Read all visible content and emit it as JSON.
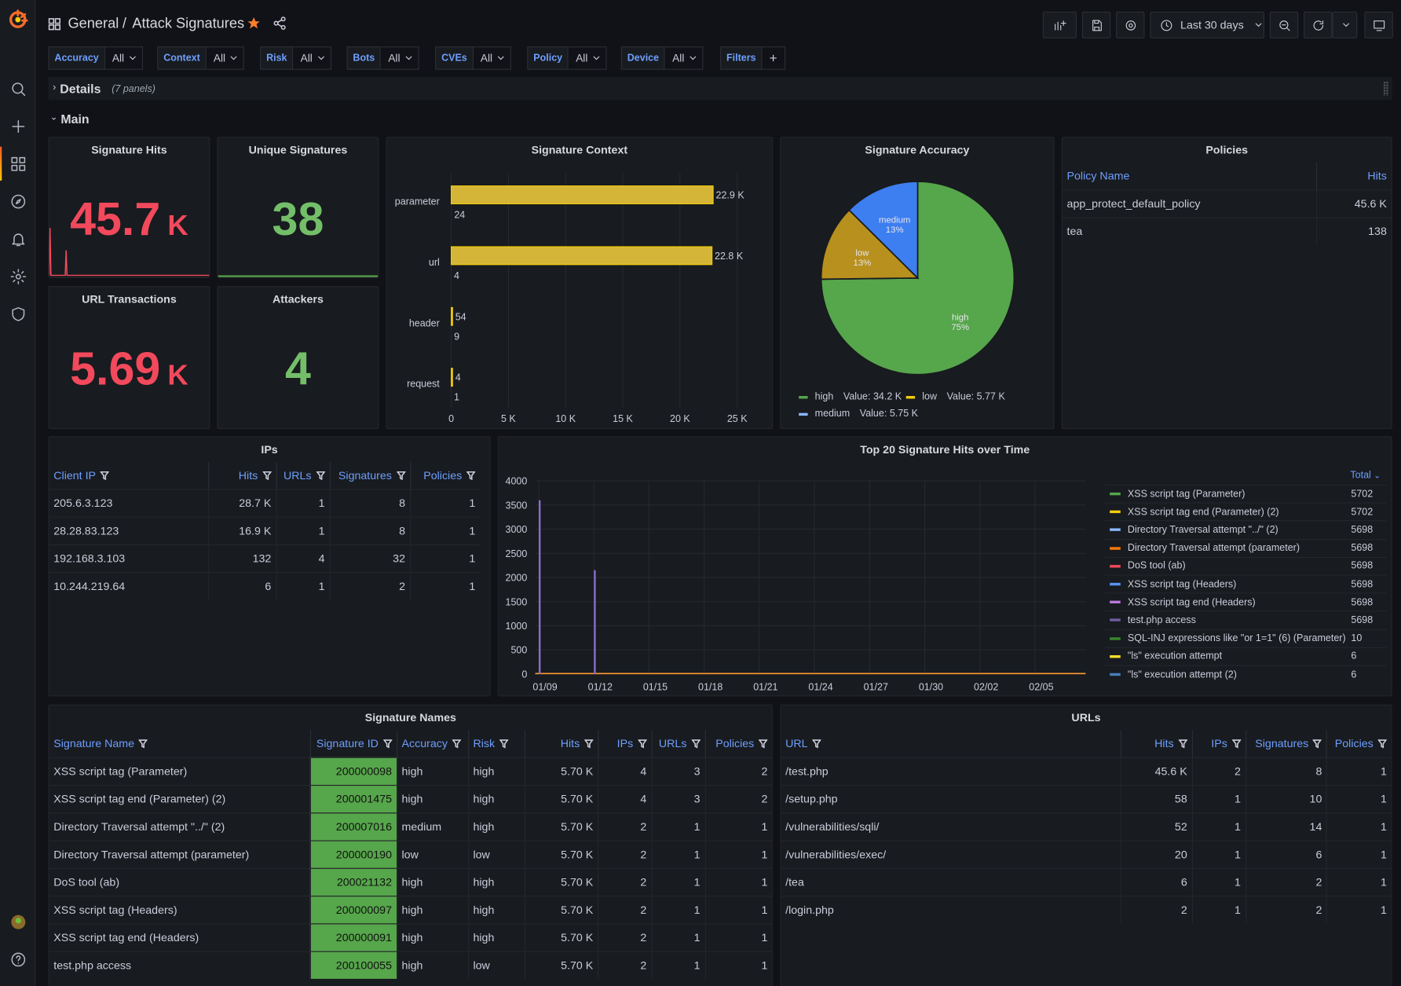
{
  "breadcrumb": {
    "folder": "General",
    "sep": "/",
    "title": "Attack Signatures"
  },
  "time_range": "Last 30 days",
  "variables": [
    {
      "label": "Accuracy",
      "value": "All"
    },
    {
      "label": "Context",
      "value": "All"
    },
    {
      "label": "Risk",
      "value": "All"
    },
    {
      "label": "Bots",
      "value": "All"
    },
    {
      "label": "CVEs",
      "value": "All"
    },
    {
      "label": "Policy",
      "value": "All"
    },
    {
      "label": "Device",
      "value": "All"
    }
  ],
  "filters_label": "Filters",
  "plus": "+",
  "rows": {
    "details": "Details",
    "details_count": "(7 panels)",
    "main": "Main"
  },
  "stats": {
    "hits": {
      "title": "Signature Hits",
      "value": "45.7",
      "unit": "K"
    },
    "unique": {
      "title": "Unique Signatures",
      "value": "38"
    },
    "url_tx": {
      "title": "URL Transactions",
      "value": "5.69",
      "unit": "K"
    },
    "attackers": {
      "title": "Attackers",
      "value": "4"
    }
  },
  "context": {
    "title": "Signature Context"
  },
  "accuracy": {
    "title": "Signature Accuracy",
    "legend": [
      {
        "name": "high",
        "text": "Value: 34.2 K",
        "color": "#56a64b"
      },
      {
        "name": "low",
        "text": "Value: 5.77 K",
        "color": "#f2cc0c"
      },
      {
        "name": "medium",
        "text": "Value: 5.75 K",
        "color": "#8ab8ff"
      }
    ],
    "slices": [
      {
        "name": "high",
        "pct": "75%"
      },
      {
        "name": "low",
        "pct": "13%"
      },
      {
        "name": "medium",
        "pct": "13%"
      }
    ]
  },
  "policies": {
    "title": "Policies",
    "headers": [
      "Policy Name",
      "Hits"
    ],
    "rows": [
      [
        "app_protect_default_policy",
        "45.6 K"
      ],
      [
        "tea",
        "138"
      ]
    ]
  },
  "ips": {
    "title": "IPs",
    "headers": [
      "Client IP",
      "Hits",
      "URLs",
      "Signatures",
      "Policies"
    ],
    "rows": [
      [
        "205.6.3.123",
        "28.7 K",
        "1",
        "8",
        "1"
      ],
      [
        "28.28.83.123",
        "16.9 K",
        "1",
        "8",
        "1"
      ],
      [
        "192.168.3.103",
        "132",
        "4",
        "32",
        "1"
      ],
      [
        "10.244.219.64",
        "6",
        "1",
        "2",
        "1"
      ]
    ]
  },
  "timeseries": {
    "title": "Top 20 Signature Hits over Time",
    "legend_header": "Total",
    "legend": [
      {
        "name": "XSS script tag (Parameter)",
        "total": "5702",
        "color": "#56a64b"
      },
      {
        "name": "XSS script tag end (Parameter) (2)",
        "total": "5702",
        "color": "#f2cc0c"
      },
      {
        "name": "Directory Traversal attempt \"../\" (2)",
        "total": "5698",
        "color": "#8ab8ff"
      },
      {
        "name": "Directory Traversal attempt (parameter)",
        "total": "5698",
        "color": "#ff780a"
      },
      {
        "name": "DoS tool (ab)",
        "total": "5698",
        "color": "#f2495c"
      },
      {
        "name": "XSS script tag (Headers)",
        "total": "5698",
        "color": "#5794f2"
      },
      {
        "name": "XSS script tag end (Headers)",
        "total": "5698",
        "color": "#b877d9"
      },
      {
        "name": "test.php access",
        "total": "5698",
        "color": "#705da0"
      },
      {
        "name": "SQL-INJ expressions like \"or 1=1\" (6) (Parameter)",
        "total": "10",
        "color": "#37872d"
      },
      {
        "name": "\"ls\" execution attempt",
        "total": "6",
        "color": "#fade2a"
      },
      {
        "name": "\"ls\" execution attempt (2)",
        "total": "6",
        "color": "#447ebc"
      }
    ]
  },
  "signatures": {
    "title": "Signature Names",
    "headers": [
      "Signature Name",
      "Signature ID",
      "Accuracy",
      "Risk",
      "Hits",
      "IPs",
      "URLs",
      "Policies"
    ],
    "rows": [
      [
        "XSS script tag (Parameter)",
        "200000098",
        "high",
        "high",
        "5.70 K",
        "4",
        "3",
        "2"
      ],
      [
        "XSS script tag end (Parameter) (2)",
        "200001475",
        "high",
        "high",
        "5.70 K",
        "4",
        "3",
        "2"
      ],
      [
        "Directory Traversal attempt \"../\" (2)",
        "200007016",
        "medium",
        "high",
        "5.70 K",
        "2",
        "1",
        "1"
      ],
      [
        "Directory Traversal attempt (parameter)",
        "200000190",
        "low",
        "low",
        "5.70 K",
        "2",
        "1",
        "1"
      ],
      [
        "DoS tool (ab)",
        "200021132",
        "high",
        "high",
        "5.70 K",
        "2",
        "1",
        "1"
      ],
      [
        "XSS script tag (Headers)",
        "200000097",
        "high",
        "high",
        "5.70 K",
        "2",
        "1",
        "1"
      ],
      [
        "XSS script tag end (Headers)",
        "200000091",
        "high",
        "high",
        "5.70 K",
        "2",
        "1",
        "1"
      ],
      [
        "test.php access",
        "200100055",
        "high",
        "low",
        "5.70 K",
        "2",
        "1",
        "1"
      ]
    ]
  },
  "urls": {
    "title": "URLs",
    "headers": [
      "URL",
      "Hits",
      "IPs",
      "Signatures",
      "Policies"
    ],
    "rows": [
      [
        "/test.php",
        "45.6 K",
        "2",
        "8",
        "1"
      ],
      [
        "/setup.php",
        "58",
        "1",
        "10",
        "1"
      ],
      [
        "/vulnerabilities/sqli/",
        "52",
        "1",
        "14",
        "1"
      ],
      [
        "/vulnerabilities/exec/",
        "20",
        "1",
        "6",
        "1"
      ],
      [
        "/tea",
        "6",
        "1",
        "2",
        "1"
      ],
      [
        "/login.php",
        "2",
        "1",
        "2",
        "1"
      ]
    ]
  },
  "chart_data": [
    {
      "type": "bar",
      "title": "Signature Context",
      "categories": [
        "parameter",
        "url",
        "header",
        "request"
      ],
      "series": [
        {
          "values": [
            22900,
            22800,
            54,
            4
          ]
        },
        {
          "values": [
            24,
            4,
            9,
            1
          ]
        }
      ],
      "value_labels": [
        [
          "22.9 K",
          "24"
        ],
        [
          "22.8 K",
          "4"
        ],
        [
          "54",
          "9"
        ],
        [
          "4",
          "1"
        ]
      ],
      "xticks": [
        "0",
        "5 K",
        "10 K",
        "15 K",
        "20 K",
        "25 K"
      ],
      "xlim": [
        0,
        25000
      ],
      "orientation": "horizontal"
    },
    {
      "type": "pie",
      "title": "Signature Accuracy",
      "categories": [
        "high",
        "low",
        "medium"
      ],
      "values": [
        34200,
        5770,
        5750
      ]
    },
    {
      "type": "line",
      "title": "Top 20 Signature Hits over Time",
      "ylim": [
        0,
        4000
      ],
      "yticks": [
        "0",
        "500",
        "1000",
        "1500",
        "2000",
        "2500",
        "3000",
        "3500",
        "4000"
      ],
      "xticks": [
        "01/09",
        "01/12",
        "01/15",
        "01/18",
        "01/21",
        "01/24",
        "01/27",
        "01/30",
        "02/02",
        "02/05"
      ],
      "series": [
        {
          "name": "test.php access",
          "x": [
            "01/09",
            "01/12"
          ],
          "y": [
            3600,
            2150
          ]
        }
      ]
    }
  ]
}
